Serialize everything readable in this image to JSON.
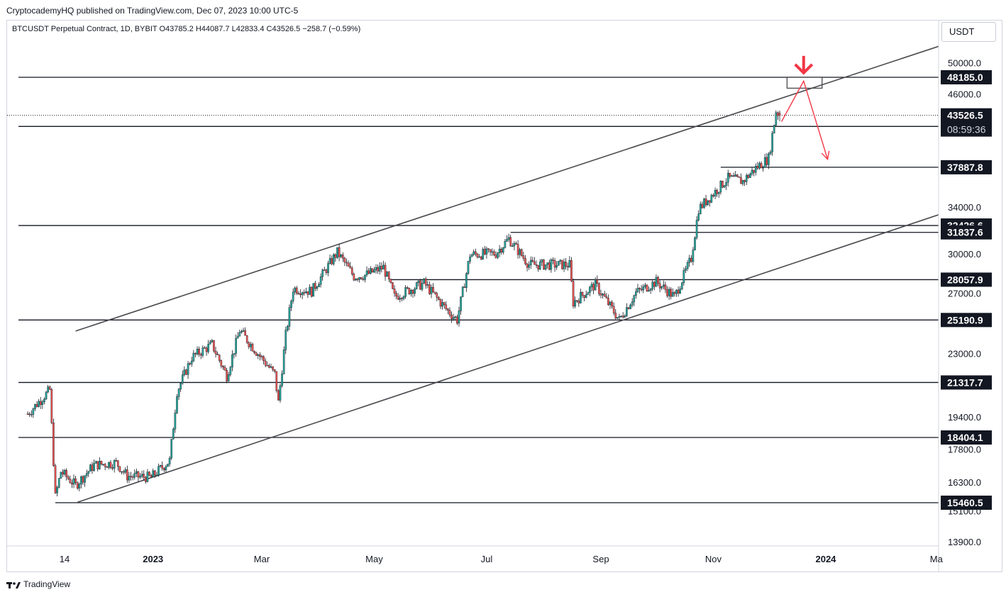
{
  "header": {
    "published_line": "CryptocademyHQ published on TradingView.com, Dec 07, 2023 10:00 UTC-5",
    "legend": "BTCUSDT Perpetual Contract, 1D, BYBIT  O43785.2  H44087.7  L42833.4  C43526.5  −258.7 (−0.59%)",
    "currency": "USDT"
  },
  "footer": {
    "brand": "TradingView",
    "logo_icon": "tradingview-logo-icon"
  },
  "chart_data": {
    "type": "candlestick",
    "symbol": "BTCUSDT Perpetual Contract",
    "interval": "1D",
    "exchange": "BYBIT",
    "last_bar": {
      "open": 43785.2,
      "high": 44087.7,
      "low": 42833.4,
      "close": 43526.5,
      "change": -258.7,
      "change_pct": -0.59
    },
    "y_scale": "log",
    "ylim": [
      13000,
      55000
    ],
    "price_ticks": [
      "50000.0",
      "46000.0",
      "34000.0",
      "30000.0",
      "27000.0",
      "23000.0",
      "19400.0",
      "17800.0",
      "16300.0",
      "15100.0",
      "13900.0"
    ],
    "time_ticks": [
      {
        "label": "14",
        "date": "2022-11-14",
        "bold": false
      },
      {
        "label": "2023",
        "date": "2023-01-01",
        "bold": true
      },
      {
        "label": "Mar",
        "date": "2023-03-01",
        "bold": false
      },
      {
        "label": "May",
        "date": "2023-05-01",
        "bold": false
      },
      {
        "label": "Jul",
        "date": "2023-07-01",
        "bold": false
      },
      {
        "label": "Sep",
        "date": "2023-09-01",
        "bold": false
      },
      {
        "label": "Nov",
        "date": "2023-11-01",
        "bold": false
      },
      {
        "label": "2024",
        "date": "2024-01-01",
        "bold": true
      },
      {
        "label": "Ma",
        "date": "2024-03-01",
        "bold": false
      }
    ],
    "current_price": {
      "value": 43526.5,
      "label": "43526.5",
      "countdown": "08:59:36"
    },
    "level_labels": [
      {
        "value": 48185.0,
        "label": "48185.0"
      },
      {
        "value": 42256.0,
        "label": "42256.0"
      },
      {
        "value": 37887.8,
        "label": "37887.8"
      },
      {
        "value": 32426.6,
        "label": "32426.6"
      },
      {
        "value": 31837.6,
        "label": "31837.6"
      },
      {
        "value": 28057.9,
        "label": "28057.9"
      },
      {
        "value": 25190.9,
        "label": "25190.9"
      },
      {
        "value": 21317.7,
        "label": "21317.7"
      },
      {
        "value": 18404.1,
        "label": "18404.1"
      },
      {
        "value": 15460.5,
        "label": "15460.5"
      }
    ],
    "horizontal_levels": [
      {
        "value": 48185.0,
        "from": "2022-10-20",
        "to": "2024-03-10"
      },
      {
        "value": 42256.0,
        "from": "2022-10-20",
        "to": "2024-03-10"
      },
      {
        "value": 37887.8,
        "from": "2023-11-05",
        "to": "2024-03-10"
      },
      {
        "value": 32426.6,
        "from": "2022-10-20",
        "to": "2024-03-10"
      },
      {
        "value": 31837.6,
        "from": "2023-07-14",
        "to": "2024-03-10"
      },
      {
        "value": 28057.9,
        "from": "2023-05-10",
        "to": "2024-03-10"
      },
      {
        "value": 25190.9,
        "from": "2022-10-20",
        "to": "2024-03-10"
      },
      {
        "value": 21317.7,
        "from": "2022-10-20",
        "to": "2024-03-10"
      },
      {
        "value": 18404.1,
        "from": "2022-10-20",
        "to": "2024-03-10"
      },
      {
        "value": 15460.5,
        "from": "2022-11-09",
        "to": "2024-03-10"
      }
    ],
    "channel_lines": [
      {
        "name": "upper",
        "p1": {
          "date": "2022-11-20",
          "price": 24460
        },
        "p2": {
          "date": "2024-03-10",
          "price": 53000
        }
      },
      {
        "name": "lower",
        "p1": {
          "date": "2022-11-21",
          "price": 15480
        },
        "p2": {
          "date": "2024-03-10",
          "price": 33800
        }
      }
    ],
    "target_box": {
      "from": "2023-12-11",
      "to": "2023-12-30",
      "low": 46800,
      "high": 48200
    },
    "projection_path": [
      {
        "date": "2023-12-08",
        "price": 42800
      },
      {
        "date": "2023-12-20",
        "price": 47700
      },
      {
        "date": "2024-01-02",
        "price": 38700
      }
    ],
    "marker_arrow": {
      "date": "2023-12-20",
      "direction": "down",
      "color": "#f23645"
    },
    "price_path": [
      {
        "date": "2022-10-25",
        "price": 19600
      },
      {
        "date": "2022-11-06",
        "price": 20900
      },
      {
        "date": "2022-11-09",
        "price": 15700
      },
      {
        "date": "2022-11-12",
        "price": 16800
      },
      {
        "date": "2022-11-20",
        "price": 16200
      },
      {
        "date": "2022-11-30",
        "price": 17100
      },
      {
        "date": "2022-12-12",
        "price": 17200
      },
      {
        "date": "2022-12-18",
        "price": 16600
      },
      {
        "date": "2022-12-31",
        "price": 16550
      },
      {
        "date": "2023-01-10",
        "price": 17300
      },
      {
        "date": "2023-01-14",
        "price": 20800
      },
      {
        "date": "2023-01-22",
        "price": 22800
      },
      {
        "date": "2023-02-02",
        "price": 23600
      },
      {
        "date": "2023-02-10",
        "price": 21700
      },
      {
        "date": "2023-02-17",
        "price": 24500
      },
      {
        "date": "2023-02-25",
        "price": 23300
      },
      {
        "date": "2023-03-08",
        "price": 21800
      },
      {
        "date": "2023-03-10",
        "price": 20200
      },
      {
        "date": "2023-03-14",
        "price": 24200
      },
      {
        "date": "2023-03-18",
        "price": 27400
      },
      {
        "date": "2023-03-28",
        "price": 27200
      },
      {
        "date": "2023-04-11",
        "price": 30200
      },
      {
        "date": "2023-04-20",
        "price": 28300
      },
      {
        "date": "2023-04-26",
        "price": 28400
      },
      {
        "date": "2023-05-06",
        "price": 29000
      },
      {
        "date": "2023-05-12",
        "price": 26800
      },
      {
        "date": "2023-05-28",
        "price": 27800
      },
      {
        "date": "2023-06-10",
        "price": 25800
      },
      {
        "date": "2023-06-15",
        "price": 25200
      },
      {
        "date": "2023-06-22",
        "price": 30000
      },
      {
        "date": "2023-07-06",
        "price": 30100
      },
      {
        "date": "2023-07-13",
        "price": 31300
      },
      {
        "date": "2023-07-24",
        "price": 29200
      },
      {
        "date": "2023-08-15",
        "price": 29200
      },
      {
        "date": "2023-08-17",
        "price": 26400
      },
      {
        "date": "2023-08-29",
        "price": 27700
      },
      {
        "date": "2023-09-11",
        "price": 25200
      },
      {
        "date": "2023-09-20",
        "price": 27100
      },
      {
        "date": "2023-10-01",
        "price": 27900
      },
      {
        "date": "2023-10-11",
        "price": 26800
      },
      {
        "date": "2023-10-20",
        "price": 29700
      },
      {
        "date": "2023-10-24",
        "price": 33900
      },
      {
        "date": "2023-11-09",
        "price": 36800
      },
      {
        "date": "2023-11-17",
        "price": 36500
      },
      {
        "date": "2023-11-24",
        "price": 37800
      },
      {
        "date": "2023-12-01",
        "price": 38800
      },
      {
        "date": "2023-12-05",
        "price": 44000
      },
      {
        "date": "2023-12-07",
        "price": 43526.5
      }
    ],
    "colors": {
      "up": "#26a69a",
      "down": "#ef5350",
      "wick": "#131722",
      "level_line": "#131722",
      "channel_line": "#4a4a4f",
      "projection": "#f23645",
      "label_bg": "#131722",
      "label_text": "#ffffff"
    },
    "grid": false
  }
}
